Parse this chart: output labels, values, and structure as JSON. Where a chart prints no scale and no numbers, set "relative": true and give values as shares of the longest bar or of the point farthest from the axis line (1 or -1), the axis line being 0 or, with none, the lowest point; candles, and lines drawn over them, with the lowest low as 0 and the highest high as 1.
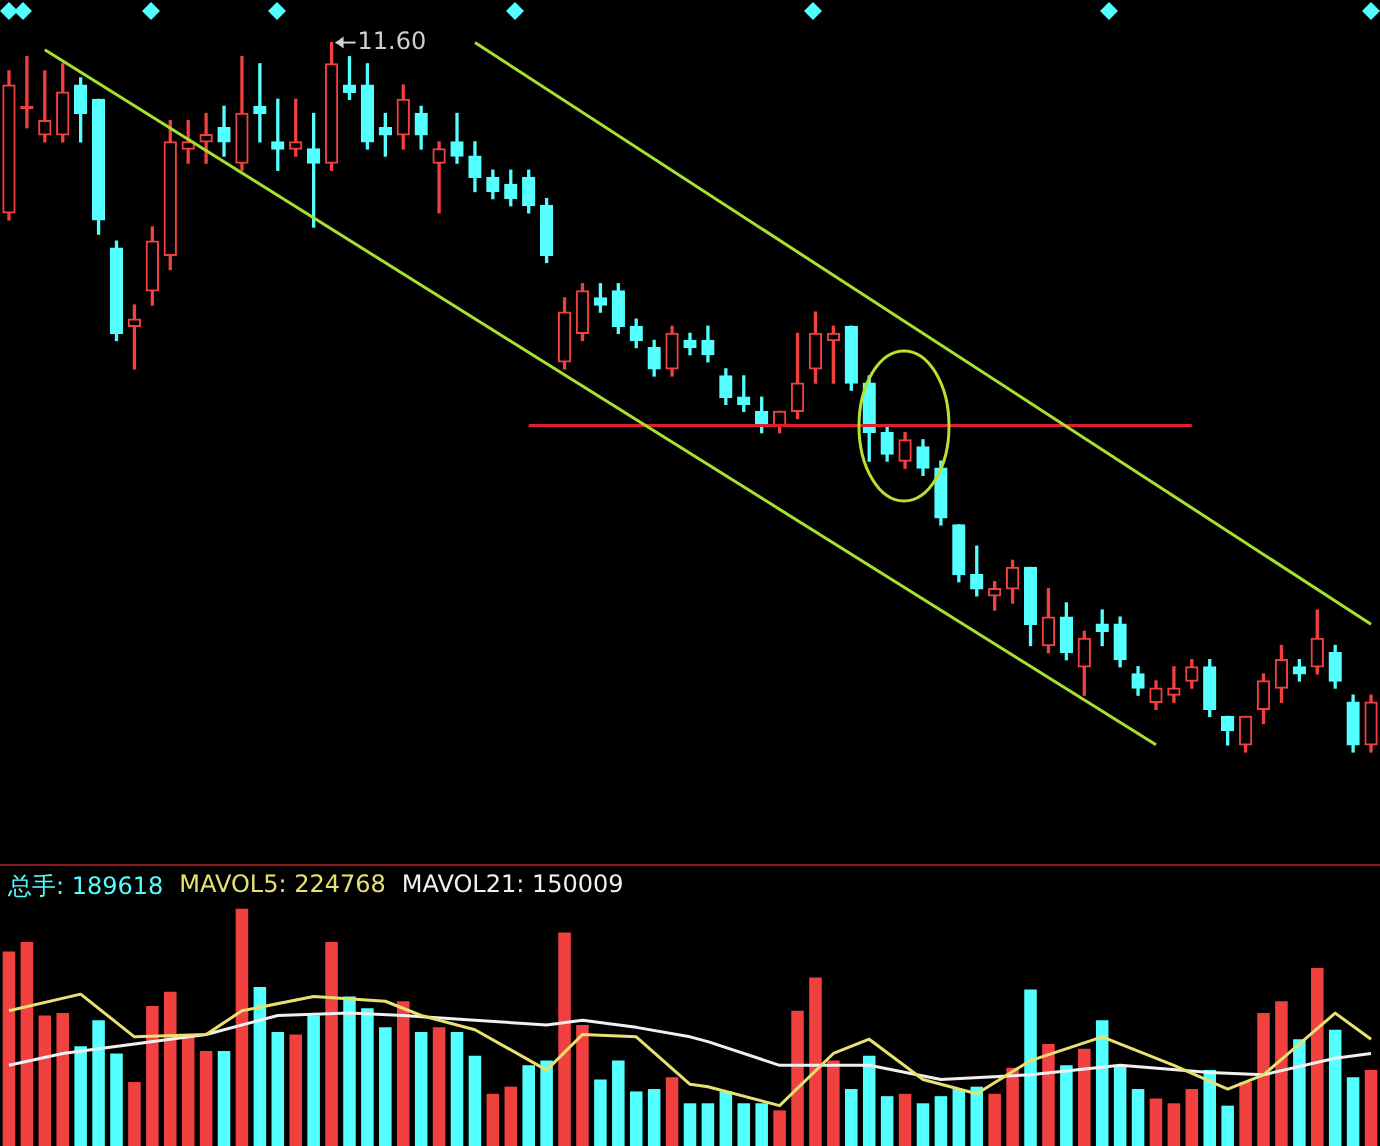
{
  "chart_data": [
    {
      "type": "candlestick",
      "relative": true,
      "annotations": [
        "11.60"
      ],
      "categories": [
        null,
        null,
        null,
        null,
        null,
        null,
        null,
        null,
        null,
        null,
        null,
        null,
        null,
        null,
        null,
        null,
        null,
        null,
        null,
        null,
        null,
        null,
        null,
        null,
        null,
        null,
        null,
        null,
        null,
        null,
        null,
        null,
        null,
        null,
        null,
        null,
        null,
        null,
        null,
        null,
        null,
        null,
        null,
        null,
        null,
        null,
        null,
        null,
        null,
        null,
        null,
        null,
        null,
        null,
        null,
        null,
        null,
        null,
        null,
        null,
        null,
        null,
        null,
        null,
        null,
        null,
        null,
        null,
        null,
        null,
        null,
        null,
        null,
        null,
        null,
        null,
        null
      ],
      "ohlc": [
        [
          0.76,
          0.96,
          0.75,
          0.94
        ],
        [
          0.91,
          0.98,
          0.88,
          0.91
        ],
        [
          0.87,
          0.96,
          0.86,
          0.89
        ],
        [
          0.87,
          0.97,
          0.86,
          0.93
        ],
        [
          0.94,
          0.95,
          0.86,
          0.9
        ],
        [
          0.92,
          0.92,
          0.73,
          0.75
        ],
        [
          0.71,
          0.72,
          0.58,
          0.59
        ],
        [
          0.6,
          0.63,
          0.54,
          0.61
        ],
        [
          0.65,
          0.74,
          0.63,
          0.72
        ],
        [
          0.7,
          0.89,
          0.68,
          0.86
        ],
        [
          0.85,
          0.89,
          0.83,
          0.86
        ],
        [
          0.86,
          0.9,
          0.83,
          0.87
        ],
        [
          0.88,
          0.91,
          0.84,
          0.86
        ],
        [
          0.83,
          0.98,
          0.82,
          0.9
        ],
        [
          0.91,
          0.97,
          0.86,
          0.9
        ],
        [
          0.86,
          0.92,
          0.82,
          0.85
        ],
        [
          0.85,
          0.92,
          0.84,
          0.86
        ],
        [
          0.85,
          0.9,
          0.74,
          0.83
        ],
        [
          0.83,
          1.0,
          0.82,
          0.97
        ],
        [
          0.94,
          0.98,
          0.92,
          0.93
        ],
        [
          0.94,
          0.97,
          0.85,
          0.86
        ],
        [
          0.88,
          0.9,
          0.84,
          0.87
        ],
        [
          0.87,
          0.94,
          0.85,
          0.92
        ],
        [
          0.9,
          0.91,
          0.85,
          0.87
        ],
        [
          0.83,
          0.86,
          0.76,
          0.85
        ],
        [
          0.86,
          0.9,
          0.83,
          0.84
        ],
        [
          0.84,
          0.86,
          0.79,
          0.81
        ],
        [
          0.81,
          0.82,
          0.78,
          0.79
        ],
        [
          0.8,
          0.82,
          0.77,
          0.78
        ],
        [
          0.81,
          0.82,
          0.76,
          0.77
        ],
        [
          0.77,
          0.78,
          0.69,
          0.7
        ],
        [
          0.55,
          0.64,
          0.54,
          0.62
        ],
        [
          0.59,
          0.66,
          0.58,
          0.65
        ],
        [
          0.64,
          0.66,
          0.62,
          0.63
        ],
        [
          0.65,
          0.66,
          0.59,
          0.6
        ],
        [
          0.6,
          0.61,
          0.57,
          0.58
        ],
        [
          0.57,
          0.58,
          0.53,
          0.54
        ],
        [
          0.54,
          0.6,
          0.53,
          0.59
        ],
        [
          0.58,
          0.59,
          0.56,
          0.57
        ],
        [
          0.58,
          0.6,
          0.55,
          0.56
        ],
        [
          0.53,
          0.54,
          0.49,
          0.5
        ],
        [
          0.5,
          0.53,
          0.48,
          0.49
        ],
        [
          0.48,
          0.5,
          0.45,
          0.46
        ],
        [
          0.46,
          0.48,
          0.45,
          0.48
        ],
        [
          0.48,
          0.59,
          0.47,
          0.52
        ],
        [
          0.54,
          0.62,
          0.52,
          0.59
        ],
        [
          0.58,
          0.6,
          0.52,
          0.59
        ],
        [
          0.6,
          0.6,
          0.51,
          0.52
        ],
        [
          0.52,
          0.53,
          0.41,
          0.45
        ],
        [
          0.45,
          0.46,
          0.41,
          0.42
        ],
        [
          0.41,
          0.45,
          0.4,
          0.44
        ],
        [
          0.43,
          0.44,
          0.39,
          0.4
        ],
        [
          0.4,
          0.41,
          0.32,
          0.33
        ],
        [
          0.32,
          0.32,
          0.24,
          0.25
        ],
        [
          0.25,
          0.29,
          0.22,
          0.23
        ],
        [
          0.22,
          0.24,
          0.2,
          0.23
        ],
        [
          0.23,
          0.27,
          0.21,
          0.26
        ],
        [
          0.26,
          0.26,
          0.15,
          0.18
        ],
        [
          0.15,
          0.23,
          0.14,
          0.19
        ],
        [
          0.19,
          0.21,
          0.13,
          0.14
        ],
        [
          0.12,
          0.17,
          0.08,
          0.16
        ],
        [
          0.18,
          0.2,
          0.15,
          0.17
        ],
        [
          0.18,
          0.19,
          0.12,
          0.13
        ],
        [
          0.11,
          0.12,
          0.08,
          0.09
        ],
        [
          0.07,
          0.1,
          0.06,
          0.09
        ],
        [
          0.08,
          0.12,
          0.07,
          0.09
        ],
        [
          0.1,
          0.13,
          0.09,
          0.12
        ],
        [
          0.12,
          0.13,
          0.05,
          0.06
        ],
        [
          0.05,
          0.05,
          0.01,
          0.03
        ],
        [
          0.01,
          0.05,
          0,
          0.05
        ],
        [
          0.06,
          0.11,
          0.04,
          0.1
        ],
        [
          0.09,
          0.15,
          0.07,
          0.13
        ],
        [
          0.12,
          0.13,
          0.1,
          0.11
        ],
        [
          0.12,
          0.2,
          0.11,
          0.16
        ],
        [
          0.14,
          0.15,
          0.09,
          0.1
        ],
        [
          0.07,
          0.08,
          0,
          0.01
        ],
        [
          0.01,
          0.08,
          0,
          0.07
        ]
      ],
      "colors": [
        "#f04040",
        "#f04040",
        "#f04040",
        "#f04040",
        "#54ffff",
        "#54ffff",
        "#54ffff",
        "#f04040",
        "#f04040",
        "#f04040",
        "#f04040",
        "#f04040",
        "#54ffff",
        "#f04040",
        "#54ffff",
        "#54ffff",
        "#f04040",
        "#54ffff",
        "#f04040",
        "#54ffff",
        "#54ffff",
        "#54ffff",
        "#f04040",
        "#54ffff",
        "#f04040",
        "#54ffff",
        "#54ffff",
        "#54ffff",
        "#54ffff",
        "#54ffff",
        "#54ffff",
        "#f04040",
        "#f04040",
        "#54ffff",
        "#54ffff",
        "#54ffff",
        "#54ffff",
        "#f04040",
        "#54ffff",
        "#54ffff",
        "#54ffff",
        "#54ffff",
        "#54ffff",
        "#f04040",
        "#f04040",
        "#f04040",
        "#f04040",
        "#54ffff",
        "#54ffff",
        "#54ffff",
        "#f04040",
        "#54ffff",
        "#54ffff",
        "#54ffff",
        "#54ffff",
        "#f04040",
        "#f04040",
        "#54ffff",
        "#f04040",
        "#54ffff",
        "#f04040",
        "#54ffff",
        "#54ffff",
        "#54ffff",
        "#f04040",
        "#f04040",
        "#f04040",
        "#54ffff",
        "#54ffff",
        "#f04040",
        "#f04040",
        "#f04040",
        "#54ffff",
        "#f04040",
        "#54ffff",
        "#54ffff",
        "#f04040"
      ],
      "series": [
        {
          "type": "line",
          "color": "#a8e030",
          "values": [
            null,
            null,
            null,
            null,
            null,
            null,
            null,
            null,
            null,
            null,
            null,
            null,
            null,
            null,
            null,
            null,
            null,
            null,
            null,
            null,
            null,
            null,
            null,
            null,
            null,
            null,
            1.0,
            null,
            null,
            null,
            null,
            null,
            null,
            null,
            null,
            null,
            null,
            null,
            null,
            null,
            null,
            null,
            null,
            null,
            null,
            null,
            null,
            null,
            null,
            null,
            null,
            null,
            null,
            null,
            null,
            null,
            null,
            null,
            null,
            null,
            null,
            null,
            null,
            null,
            null,
            null,
            null,
            null,
            null,
            null,
            null,
            null,
            null,
            null,
            null,
            null,
            0.18
          ]
        },
        {
          "type": "line",
          "color": "#a8e030",
          "values": [
            null,
            null,
            0.99,
            null,
            null,
            null,
            null,
            null,
            null,
            null,
            null,
            null,
            null,
            null,
            null,
            null,
            null,
            null,
            null,
            null,
            null,
            null,
            null,
            null,
            null,
            null,
            null,
            null,
            null,
            null,
            null,
            null,
            null,
            null,
            null,
            null,
            null,
            null,
            null,
            null,
            null,
            null,
            null,
            null,
            null,
            null,
            null,
            null,
            null,
            null,
            null,
            null,
            null,
            null,
            null,
            null,
            null,
            null,
            null,
            null,
            null,
            null,
            null,
            null,
            0.01,
            null,
            null,
            null,
            null,
            null,
            null,
            null,
            null,
            null,
            null,
            null,
            null
          ]
        },
        {
          "type": "line",
          "color": "#e02030",
          "values": [
            null,
            null,
            null,
            null,
            null,
            null,
            null,
            null,
            null,
            null,
            null,
            null,
            null,
            null,
            null,
            null,
            null,
            null,
            null,
            null,
            null,
            null,
            null,
            null,
            null,
            null,
            null,
            null,
            null,
            0.46,
            null,
            null,
            null,
            null,
            null,
            null,
            null,
            null,
            null,
            null,
            null,
            null,
            null,
            null,
            null,
            null,
            null,
            null,
            null,
            null,
            null,
            null,
            null,
            null,
            null,
            null,
            null,
            null,
            null,
            null,
            null,
            null,
            null,
            null,
            null,
            null,
            0.46,
            null,
            null,
            null,
            null,
            null,
            null,
            null,
            null,
            null,
            null
          ]
        }
      ]
    },
    {
      "type": "bar",
      "relative": true,
      "legend": "top left",
      "categories": [
        null,
        null,
        null,
        null,
        null,
        null,
        null,
        null,
        null,
        null,
        null,
        null,
        null,
        null,
        null,
        null,
        null,
        null,
        null,
        null,
        null,
        null,
        null,
        null,
        null,
        null,
        null,
        null,
        null,
        null,
        null,
        null,
        null,
        null,
        null,
        null,
        null,
        null,
        null,
        null,
        null,
        null,
        null,
        null,
        null,
        null,
        null,
        null,
        null,
        null,
        null,
        null,
        null,
        null,
        null,
        null,
        null,
        null,
        null,
        null,
        null,
        null,
        null,
        null,
        null,
        null,
        null,
        null,
        null,
        null,
        null,
        null,
        null,
        null,
        null,
        null,
        null
      ],
      "series": [
        {
          "type": "bar",
          "name": "总手: 189618",
          "color": "#54ffff",
          "colors": [
            "#f04040",
            "#f04040",
            "#f04040",
            "#f04040",
            "#54ffff",
            "#54ffff",
            "#54ffff",
            "#f04040",
            "#f04040",
            "#f04040",
            "#f04040",
            "#f04040",
            "#54ffff",
            "#f04040",
            "#54ffff",
            "#54ffff",
            "#f04040",
            "#54ffff",
            "#f04040",
            "#54ffff",
            "#54ffff",
            "#54ffff",
            "#f04040",
            "#54ffff",
            "#f04040",
            "#54ffff",
            "#54ffff",
            "#f04040",
            "#f04040",
            "#54ffff",
            "#54ffff",
            "#f04040",
            "#f04040",
            "#54ffff",
            "#54ffff",
            "#54ffff",
            "#54ffff",
            "#f04040",
            "#54ffff",
            "#54ffff",
            "#54ffff",
            "#54ffff",
            "#54ffff",
            "#f04040",
            "#f04040",
            "#f04040",
            "#f04040",
            "#54ffff",
            "#54ffff",
            "#54ffff",
            "#f04040",
            "#54ffff",
            "#54ffff",
            "#54ffff",
            "#54ffff",
            "#f04040",
            "#f04040",
            "#54ffff",
            "#f04040",
            "#54ffff",
            "#f04040",
            "#54ffff",
            "#54ffff",
            "#54ffff",
            "#f04040",
            "#f04040",
            "#f04040",
            "#54ffff",
            "#54ffff",
            "#f04040",
            "#f04040",
            "#f04040",
            "#54ffff",
            "#f04040",
            "#54ffff",
            "#54ffff",
            "#f04040"
          ],
          "values": [
            0.82,
            0.86,
            0.55,
            0.56,
            0.42,
            0.53,
            0.39,
            0.27,
            0.59,
            0.65,
            0.47,
            0.4,
            0.4,
            1.0,
            0.67,
            0.48,
            0.47,
            0.55,
            0.86,
            0.63,
            0.58,
            0.5,
            0.61,
            0.48,
            0.5,
            0.48,
            0.38,
            0.22,
            0.25,
            0.34,
            0.36,
            0.9,
            0.51,
            0.28,
            0.36,
            0.23,
            0.24,
            0.29,
            0.18,
            0.18,
            0.23,
            0.18,
            0.18,
            0.15,
            0.57,
            0.71,
            0.36,
            0.24,
            0.38,
            0.21,
            0.22,
            0.18,
            0.21,
            0.24,
            0.25,
            0.22,
            0.33,
            0.66,
            0.43,
            0.34,
            0.41,
            0.53,
            0.34,
            0.24,
            0.2,
            0.18,
            0.24,
            0.32,
            0.17,
            0.27,
            0.56,
            0.61,
            0.45,
            0.75,
            0.49,
            0.29,
            0.32
          ]
        },
        {
          "type": "line",
          "name": "MAVOL5: 224768",
          "color": "#e8e070",
          "values": [
            0.57,
            null,
            null,
            null,
            0.64,
            null,
            null,
            0.46,
            null,
            null,
            null,
            0.47,
            null,
            0.57,
            null,
            null,
            null,
            0.63,
            null,
            null,
            null,
            0.61,
            null,
            0.55,
            null,
            null,
            0.49,
            null,
            null,
            null,
            0.32,
            null,
            0.47,
            null,
            null,
            0.46,
            null,
            null,
            0.26,
            0.25,
            null,
            null,
            null,
            0.17,
            null,
            null,
            0.39,
            null,
            0.45,
            null,
            null,
            0.28,
            null,
            null,
            0.22,
            null,
            null,
            0.36,
            null,
            null,
            null,
            0.46,
            null,
            null,
            null,
            0.34,
            null,
            null,
            0.24,
            null,
            0.3,
            null,
            null,
            null,
            0.56,
            null,
            0.45
          ]
        },
        {
          "type": "line",
          "name": "MAVOL21: 150009",
          "color": "#f0f0f0",
          "values": [
            0.34,
            null,
            null,
            0.39,
            null,
            null,
            null,
            0.43,
            null,
            null,
            null,
            0.47,
            null,
            null,
            null,
            0.55,
            null,
            null,
            null,
            0.56,
            null,
            null,
            0.55,
            null,
            null,
            null,
            0.53,
            null,
            null,
            null,
            0.51,
            null,
            0.53,
            null,
            null,
            0.5,
            null,
            null,
            0.46,
            0.44,
            null,
            null,
            null,
            0.34,
            null,
            null,
            null,
            null,
            0.34,
            null,
            null,
            null,
            0.28,
            null,
            null,
            null,
            null,
            0.3,
            null,
            null,
            null,
            null,
            0.34,
            null,
            null,
            null,
            null,
            0.31,
            null,
            null,
            0.3,
            null,
            null,
            null,
            0.37,
            null,
            0.39
          ]
        }
      ]
    }
  ]
}
